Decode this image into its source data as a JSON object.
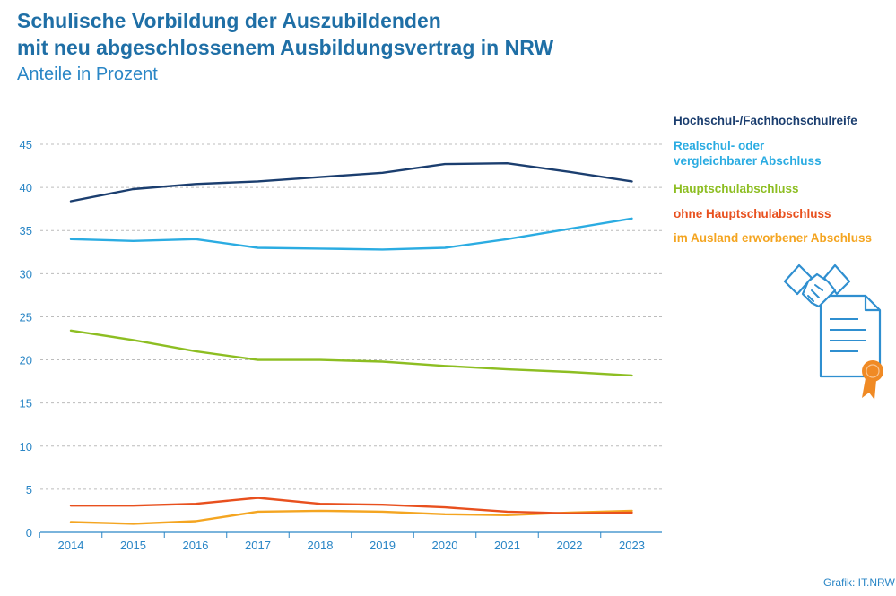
{
  "header": {
    "title_line1": "Schulische Vorbildung der Auszubildenden",
    "title_line2": "mit neu abgeschlossenem Ausbildungsvertrag in NRW",
    "subtitle": "Anteile in Prozent"
  },
  "credit": "Grafik: IT.NRW",
  "colors": {
    "axis": "#2a86c6",
    "grid": "#bcbcbc",
    "icon": "#2f8fd0",
    "ribbon": "#f08a24"
  },
  "icon": "handshake-certificate-icon",
  "chart_data": {
    "type": "line",
    "x": [
      "2014",
      "2015",
      "2016",
      "2017",
      "2018",
      "2019",
      "2020",
      "2021",
      "2022",
      "2023"
    ],
    "ylim": [
      0,
      45
    ],
    "yticks": [
      0,
      5,
      10,
      15,
      20,
      25,
      30,
      35,
      40,
      45
    ],
    "grid": "horizontal dashed",
    "legend": "right",
    "series": [
      {
        "name": "Hochschul-/Fachhochschulreife",
        "color": "#1b3e6f",
        "values": [
          38.4,
          39.8,
          40.4,
          40.7,
          41.2,
          41.7,
          42.7,
          42.8,
          41.8,
          40.7
        ]
      },
      {
        "name": "Realschul- oder vergleichbarer Abschluss",
        "color": "#2bace2",
        "values": [
          34.0,
          33.8,
          34.0,
          33.0,
          32.9,
          32.8,
          33.0,
          34.0,
          35.2,
          36.4
        ]
      },
      {
        "name": "Hauptschulabschluss",
        "color": "#8dbe22",
        "values": [
          23.4,
          22.3,
          21.0,
          20.0,
          20.0,
          19.8,
          19.3,
          18.9,
          18.6,
          18.2
        ]
      },
      {
        "name": "ohne Hauptschulabschluss",
        "color": "#e8501e",
        "values": [
          3.1,
          3.1,
          3.3,
          4.0,
          3.3,
          3.2,
          2.9,
          2.4,
          2.2,
          2.3
        ]
      },
      {
        "name": "im Ausland erworbener Abschluss",
        "color": "#f4a521",
        "values": [
          1.2,
          1.0,
          1.3,
          2.4,
          2.5,
          2.4,
          2.1,
          2.0,
          2.3,
          2.5
        ]
      }
    ]
  }
}
